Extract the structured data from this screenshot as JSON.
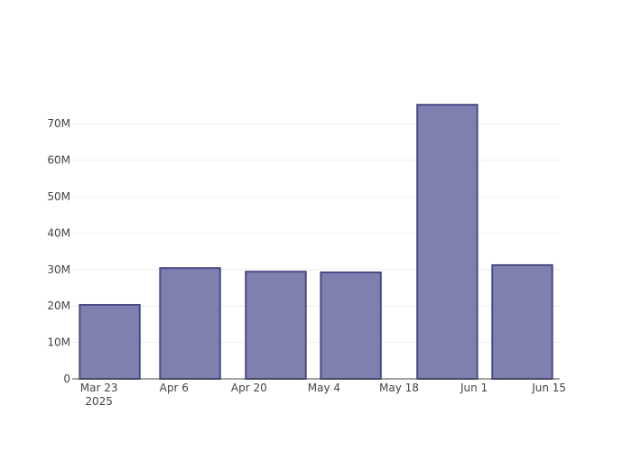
{
  "chart_data": {
    "type": "bar",
    "x": [
      "2025-03-25",
      "2025-04-09",
      "2025-04-25",
      "2025-05-09",
      "2025-05-27",
      "2025-06-10"
    ],
    "values": [
      20300000,
      30400000,
      29400000,
      29200000,
      75200000,
      31200000
    ],
    "color": "#7f7fb0",
    "edge_color": "#4b4a86",
    "xlim": [
      "2025-03-18",
      "2025-06-17"
    ],
    "xticks": [
      {
        "value": "2025-03-23",
        "label": "Mar 23\n2025"
      },
      {
        "value": "2025-04-06",
        "label": "Apr 6"
      },
      {
        "value": "2025-04-20",
        "label": "Apr 20"
      },
      {
        "value": "2025-05-04",
        "label": "May 4"
      },
      {
        "value": "2025-05-18",
        "label": "May 18"
      },
      {
        "value": "2025-06-01",
        "label": "Jun 1"
      },
      {
        "value": "2025-06-15",
        "label": "Jun 15"
      }
    ],
    "ylim": [
      0,
      79200000
    ],
    "yticks": [
      0,
      {
        "value": 10000000,
        "label": "10M"
      },
      {
        "value": 20000000,
        "label": "20M"
      },
      {
        "value": 30000000,
        "label": "30M"
      },
      {
        "value": 40000000,
        "label": "40M"
      },
      {
        "value": 50000000,
        "label": "50M"
      },
      {
        "value": 60000000,
        "label": "60M"
      },
      {
        "value": 70000000,
        "label": "70M"
      }
    ],
    "grid": true
  }
}
